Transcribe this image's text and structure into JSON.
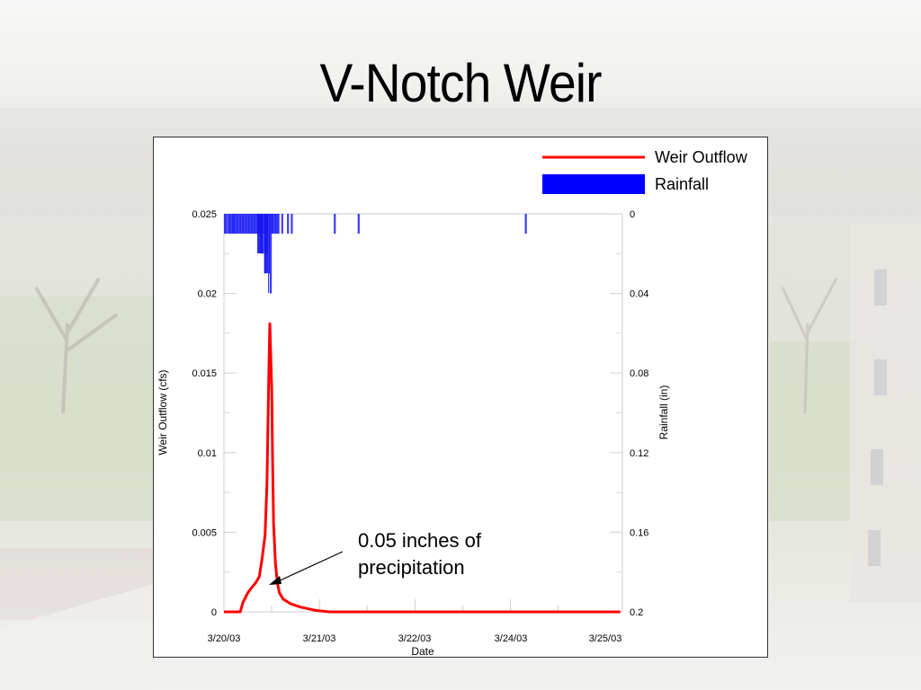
{
  "slide": {
    "title": "V-Notch Weir"
  },
  "chart_data": {
    "type": "line",
    "title": "V-Notch Weir",
    "xlabel": "Date",
    "ylabel": "Weir Outflow (cfs)",
    "y2label": "Rainfall (in)",
    "x_tick_labels": [
      "3/20/03",
      "3/21/03",
      "3/22/03",
      "3/24/03",
      "3/25/03"
    ],
    "y_ticks": [
      "0",
      "0.005",
      "0.01",
      "0.015",
      "0.02",
      "0.025"
    ],
    "y2_ticks": [
      "0",
      "0.04",
      "0.08",
      "0.12",
      "0.16",
      "0.2"
    ],
    "ylim": [
      0,
      0.025
    ],
    "y2lim": [
      0,
      0.2
    ],
    "y2_inverted": true,
    "legend": [
      "Weir Outflow",
      "Rainfall"
    ],
    "legend_position": "top-right",
    "colors": {
      "outflow": "#ff0000",
      "rainfall": "#0000ff"
    },
    "annotation": "0.05 inches of precipitation",
    "series": [
      {
        "name": "Weir Outflow",
        "type": "line",
        "x_days_from_3_20": [
          0.0,
          0.17,
          0.2,
          0.25,
          0.3,
          0.33,
          0.37,
          0.4,
          0.43,
          0.45,
          0.47,
          0.48,
          0.5,
          0.51,
          0.52,
          0.54,
          0.56,
          0.58,
          0.62,
          0.7,
          0.8,
          0.95,
          1.1,
          1.5,
          2.0,
          3.0,
          4.0,
          4.15
        ],
        "values": [
          0.0,
          0.0,
          0.0006,
          0.0012,
          0.0016,
          0.0018,
          0.0022,
          0.0034,
          0.0048,
          0.008,
          0.015,
          0.0181,
          0.014,
          0.009,
          0.0055,
          0.003,
          0.0018,
          0.0012,
          0.0008,
          0.0005,
          0.0003,
          0.0001,
          0.0,
          0.0,
          0.0,
          0.0,
          0.0,
          0.0
        ]
      },
      {
        "name": "Rainfall",
        "type": "bar",
        "x_days_from_3_20": [
          0.0,
          0.05,
          0.08,
          0.1,
          0.13,
          0.16,
          0.19,
          0.22,
          0.25,
          0.28,
          0.31,
          0.34,
          0.36,
          0.38,
          0.4,
          0.42,
          0.44,
          0.46,
          0.48,
          0.5,
          0.53,
          0.56,
          0.6,
          0.66,
          0.7,
          1.15,
          1.4,
          3.15
        ],
        "values": [
          0.01,
          0.01,
          0.01,
          0.01,
          0.01,
          0.01,
          0.01,
          0.01,
          0.01,
          0.01,
          0.01,
          0.01,
          0.01,
          0.02,
          0.02,
          0.03,
          0.02,
          0.03,
          0.04,
          0.01,
          0.01,
          0.01,
          0.01,
          0.01,
          0.01,
          0.01,
          0.01,
          0.01
        ]
      }
    ]
  }
}
